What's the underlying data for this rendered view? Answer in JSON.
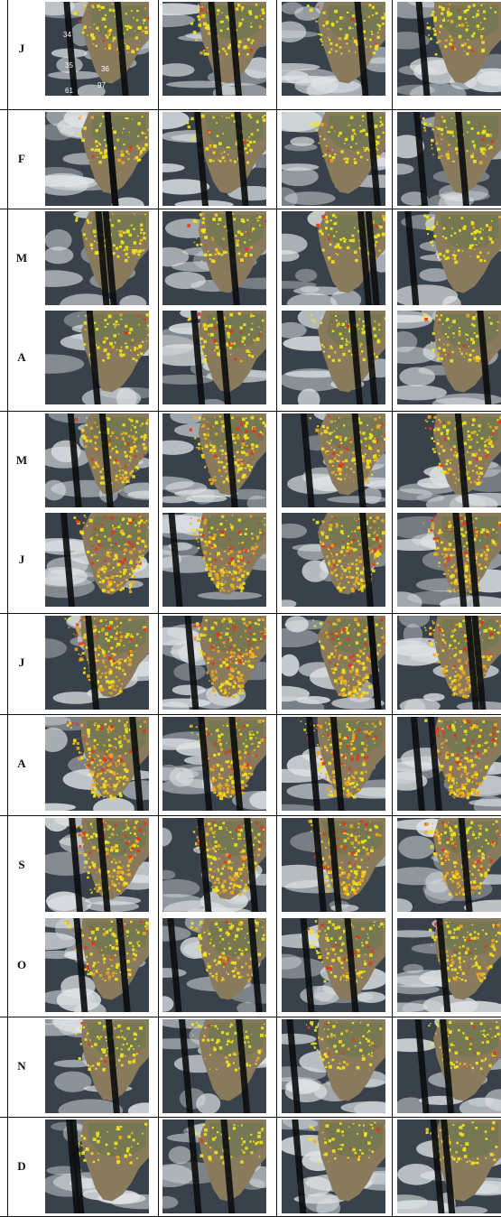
{
  "figure": {
    "months": [
      "J",
      "F",
      "M",
      "A",
      "M",
      "J",
      "J",
      "A",
      "S",
      "O",
      "N",
      "D"
    ],
    "images_per_month": 4,
    "imagery": "satellite-view-southern-africa",
    "fire_colors": {
      "low": "#f2e51a",
      "medium": "#f0a81c",
      "high": "#e8321a"
    },
    "fire_intensity": [
      0.35,
      0.3,
      0.3,
      0.3,
      0.75,
      0.95,
      1.0,
      1.0,
      0.9,
      0.6,
      0.3,
      0.15
    ],
    "grid_labels": [
      "34",
      "35",
      "36",
      "61",
      "97"
    ]
  }
}
